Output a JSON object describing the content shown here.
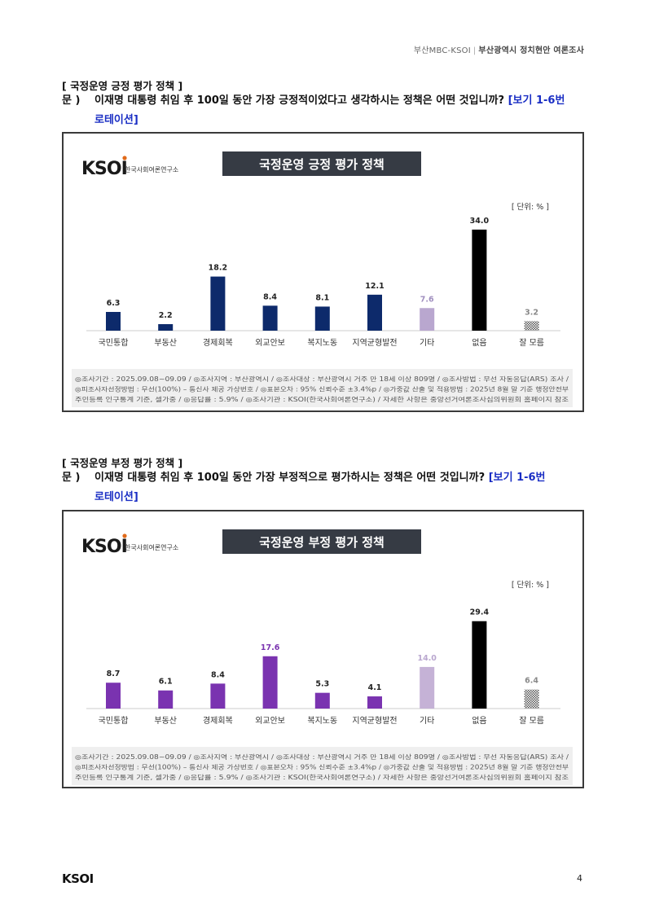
{
  "header": {
    "left": "부산MBC-KSOI",
    "divider": "|",
    "right": "부산광역시 정치현안 여론조사"
  },
  "sections": [
    {
      "title": "[ 국정운영 긍정 평가 정책 ]",
      "question_prefix": "문 )",
      "question_text": "이재명 대통령 취임 후 100일 동안 가장 긍정적이었다고 생각하시는 정책은 어떤 것입니까?",
      "question_note_1": "[보기 1-6번",
      "question_note_2": "로테이션]"
    },
    {
      "title": "[ 국정운영 부정 평가 정책 ]",
      "question_prefix": "문 )",
      "question_text": "이재명 대통령 취임 후 100일 동안 가장 부정적으로 평가하시는 정책은 어떤 것입니까?",
      "question_note_1": "[보기 1-6번",
      "question_note_2": "로테이션]"
    }
  ],
  "chart_logo": {
    "mark": "KSOI",
    "org": "한국사회여론연구소"
  },
  "chart_data": [
    {
      "type": "bar",
      "title": "국정운영 긍정 평가 정책",
      "unit_label": "[ 단위: % ]",
      "categories": [
        "국민통합",
        "부동산",
        "경제회복",
        "외교안보",
        "복지노동",
        "지역균형발전",
        "기타",
        "없음",
        "잘 모름"
      ],
      "values": [
        6.3,
        2.2,
        18.2,
        8.4,
        8.1,
        12.1,
        7.6,
        34.0,
        3.2
      ],
      "value_labels": [
        "6.3",
        "2.2",
        "18.2",
        "8.4",
        "8.1",
        "12.1",
        "7.6",
        "34.0",
        "3.2"
      ],
      "colors": [
        "#0d2a6b",
        "#0d2a6b",
        "#0d2a6b",
        "#0d2a6b",
        "#0d2a6b",
        "#0d2a6b",
        "#b9a7cf",
        "#000000",
        "pattern"
      ],
      "label_colors": [
        "#222222",
        "#222222",
        "#222222",
        "#222222",
        "#222222",
        "#222222",
        "#a08fbf",
        "#222222",
        "#888888"
      ],
      "ylim": [
        0,
        40
      ],
      "notes": [
        "◎조사기간 : 2025.09.08~09.09 / ◎조사지역 : 부산광역시 / ◎조사대상 : 부산광역시 거주 만 18세 이상 809명 / ◎조사방법 : 무선 자동응답(ARS) 조사 /",
        "◎피조사자선정방법 : 무선(100%) – 통신사 제공 가상번호 / ◎표본오차 : 95% 신뢰수준 ±3.4%p / ◎가중값 산출 및 적용방법 : 2025년 8월 말 기준 행정안전부",
        "주민등록 인구통계 기준, 셀가중 / ◎응답률 : 5.9% / ◎조사기관 : KSOI(한국사회여론연구소) / 자세한 사항은 중앙선거여론조사심의위원회 홈페이지 참조"
      ]
    },
    {
      "type": "bar",
      "title": "국정운영 부정 평가 정책",
      "unit_label": "[ 단위: % ]",
      "categories": [
        "국민통합",
        "부동산",
        "경제회복",
        "외교안보",
        "복지노동",
        "지역균형발전",
        "기타",
        "없음",
        "잘 모름"
      ],
      "values": [
        8.7,
        6.1,
        8.4,
        17.6,
        5.3,
        4.1,
        14.0,
        29.4,
        6.4
      ],
      "value_labels": [
        "8.7",
        "6.1",
        "8.4",
        "17.6",
        "5.3",
        "4.1",
        "14.0",
        "29.4",
        "6.4"
      ],
      "colors": [
        "#7a33b0",
        "#7a33b0",
        "#7a33b0",
        "#7a33b0",
        "#7a33b0",
        "#7a33b0",
        "#c5b2d6",
        "#000000",
        "pattern"
      ],
      "label_colors": [
        "#222222",
        "#222222",
        "#222222",
        "#7a33b0",
        "#222222",
        "#222222",
        "#b9a7cf",
        "#222222",
        "#888888"
      ],
      "ylim": [
        0,
        40
      ],
      "notes": [
        "◎조사기간 : 2025.09.08~09.09 / ◎조사지역 : 부산광역시 / ◎조사대상 : 부산광역시 거주 만 18세 이상 809명 / ◎조사방법 : 무선 자동응답(ARS) 조사 /",
        "◎피조사자선정방법 : 무선(100%) – 통신사 제공 가상번호 / ◎표본오차 : 95% 신뢰수준 ±3.4%p / ◎가중값 산출 및 적용방법 : 2025년 8월 말 기준 행정안전부",
        "주민등록 인구통계 기준, 셀가중 / ◎응답률 : 5.9% / ◎조사기관 : KSOI(한국사회여론연구소) / 자세한 사항은 중앙선거여론조사심의위원회 홈페이지 참조"
      ]
    }
  ],
  "footer": {
    "logo": "KSOI",
    "page": "4"
  }
}
